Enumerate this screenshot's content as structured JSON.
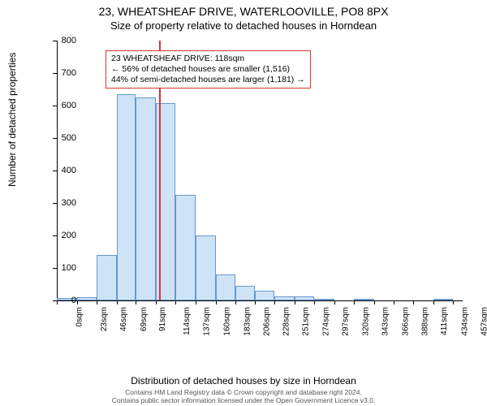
{
  "header": {
    "title": "23, WHEATSHEAF DRIVE, WATERLOOVILLE, PO8 8PX",
    "subtitle": "Size of property relative to detached houses in Horndean"
  },
  "chart": {
    "type": "histogram",
    "ylabel": "Number of detached properties",
    "xlabel": "Distribution of detached houses by size in Horndean",
    "ylim": [
      0,
      800
    ],
    "ytick_step": 100,
    "yticks": [
      0,
      100,
      200,
      300,
      400,
      500,
      600,
      700,
      800
    ],
    "xticks_sqm": [
      0,
      23,
      46,
      69,
      91,
      114,
      137,
      160,
      183,
      206,
      228,
      251,
      274,
      297,
      320,
      343,
      366,
      388,
      411,
      434,
      457
    ],
    "xtick_suffix": "sqm",
    "bar_color": "#cfe3f7",
    "bar_border_color": "#6699cc",
    "bar_border_width": 1,
    "background_color": "#ffffff",
    "grid_color": "#cccccc",
    "axis_color": "#000000",
    "ref_line_color": "#d93333",
    "ref_line_value_sqm": 118,
    "x_domain": [
      0,
      468
    ],
    "bars": [
      {
        "x_start": 0,
        "x_end": 23,
        "count": 8
      },
      {
        "x_start": 23,
        "x_end": 46,
        "count": 10
      },
      {
        "x_start": 46,
        "x_end": 69,
        "count": 140
      },
      {
        "x_start": 69,
        "x_end": 91,
        "count": 635
      },
      {
        "x_start": 91,
        "x_end": 114,
        "count": 625
      },
      {
        "x_start": 114,
        "x_end": 137,
        "count": 608
      },
      {
        "x_start": 137,
        "x_end": 160,
        "count": 325
      },
      {
        "x_start": 160,
        "x_end": 183,
        "count": 200
      },
      {
        "x_start": 183,
        "x_end": 206,
        "count": 80
      },
      {
        "x_start": 206,
        "x_end": 228,
        "count": 45
      },
      {
        "x_start": 228,
        "x_end": 251,
        "count": 30
      },
      {
        "x_start": 251,
        "x_end": 274,
        "count": 12
      },
      {
        "x_start": 274,
        "x_end": 297,
        "count": 12
      },
      {
        "x_start": 297,
        "x_end": 320,
        "count": 5
      },
      {
        "x_start": 320,
        "x_end": 343,
        "count": 0
      },
      {
        "x_start": 343,
        "x_end": 366,
        "count": 4
      },
      {
        "x_start": 366,
        "x_end": 388,
        "count": 0
      },
      {
        "x_start": 388,
        "x_end": 411,
        "count": 0
      },
      {
        "x_start": 411,
        "x_end": 434,
        "count": 0
      },
      {
        "x_start": 434,
        "x_end": 457,
        "count": 3
      }
    ],
    "info_box": {
      "line1": "23 WHEATSHEAF DRIVE: 118sqm",
      "line2": "← 56% of detached houses are smaller (1,516)",
      "line3": "44% of semi-detached houses are larger (1,181) →",
      "border_color": "#d93333",
      "text_color": "#000000"
    },
    "label_fontsize": 12,
    "tick_fontsize": 11
  },
  "footer": {
    "line1": "Contains HM Land Registry data © Crown copyright and database right 2024.",
    "line2": "Contains public sector information licensed under the Open Government Licence v3.0."
  }
}
